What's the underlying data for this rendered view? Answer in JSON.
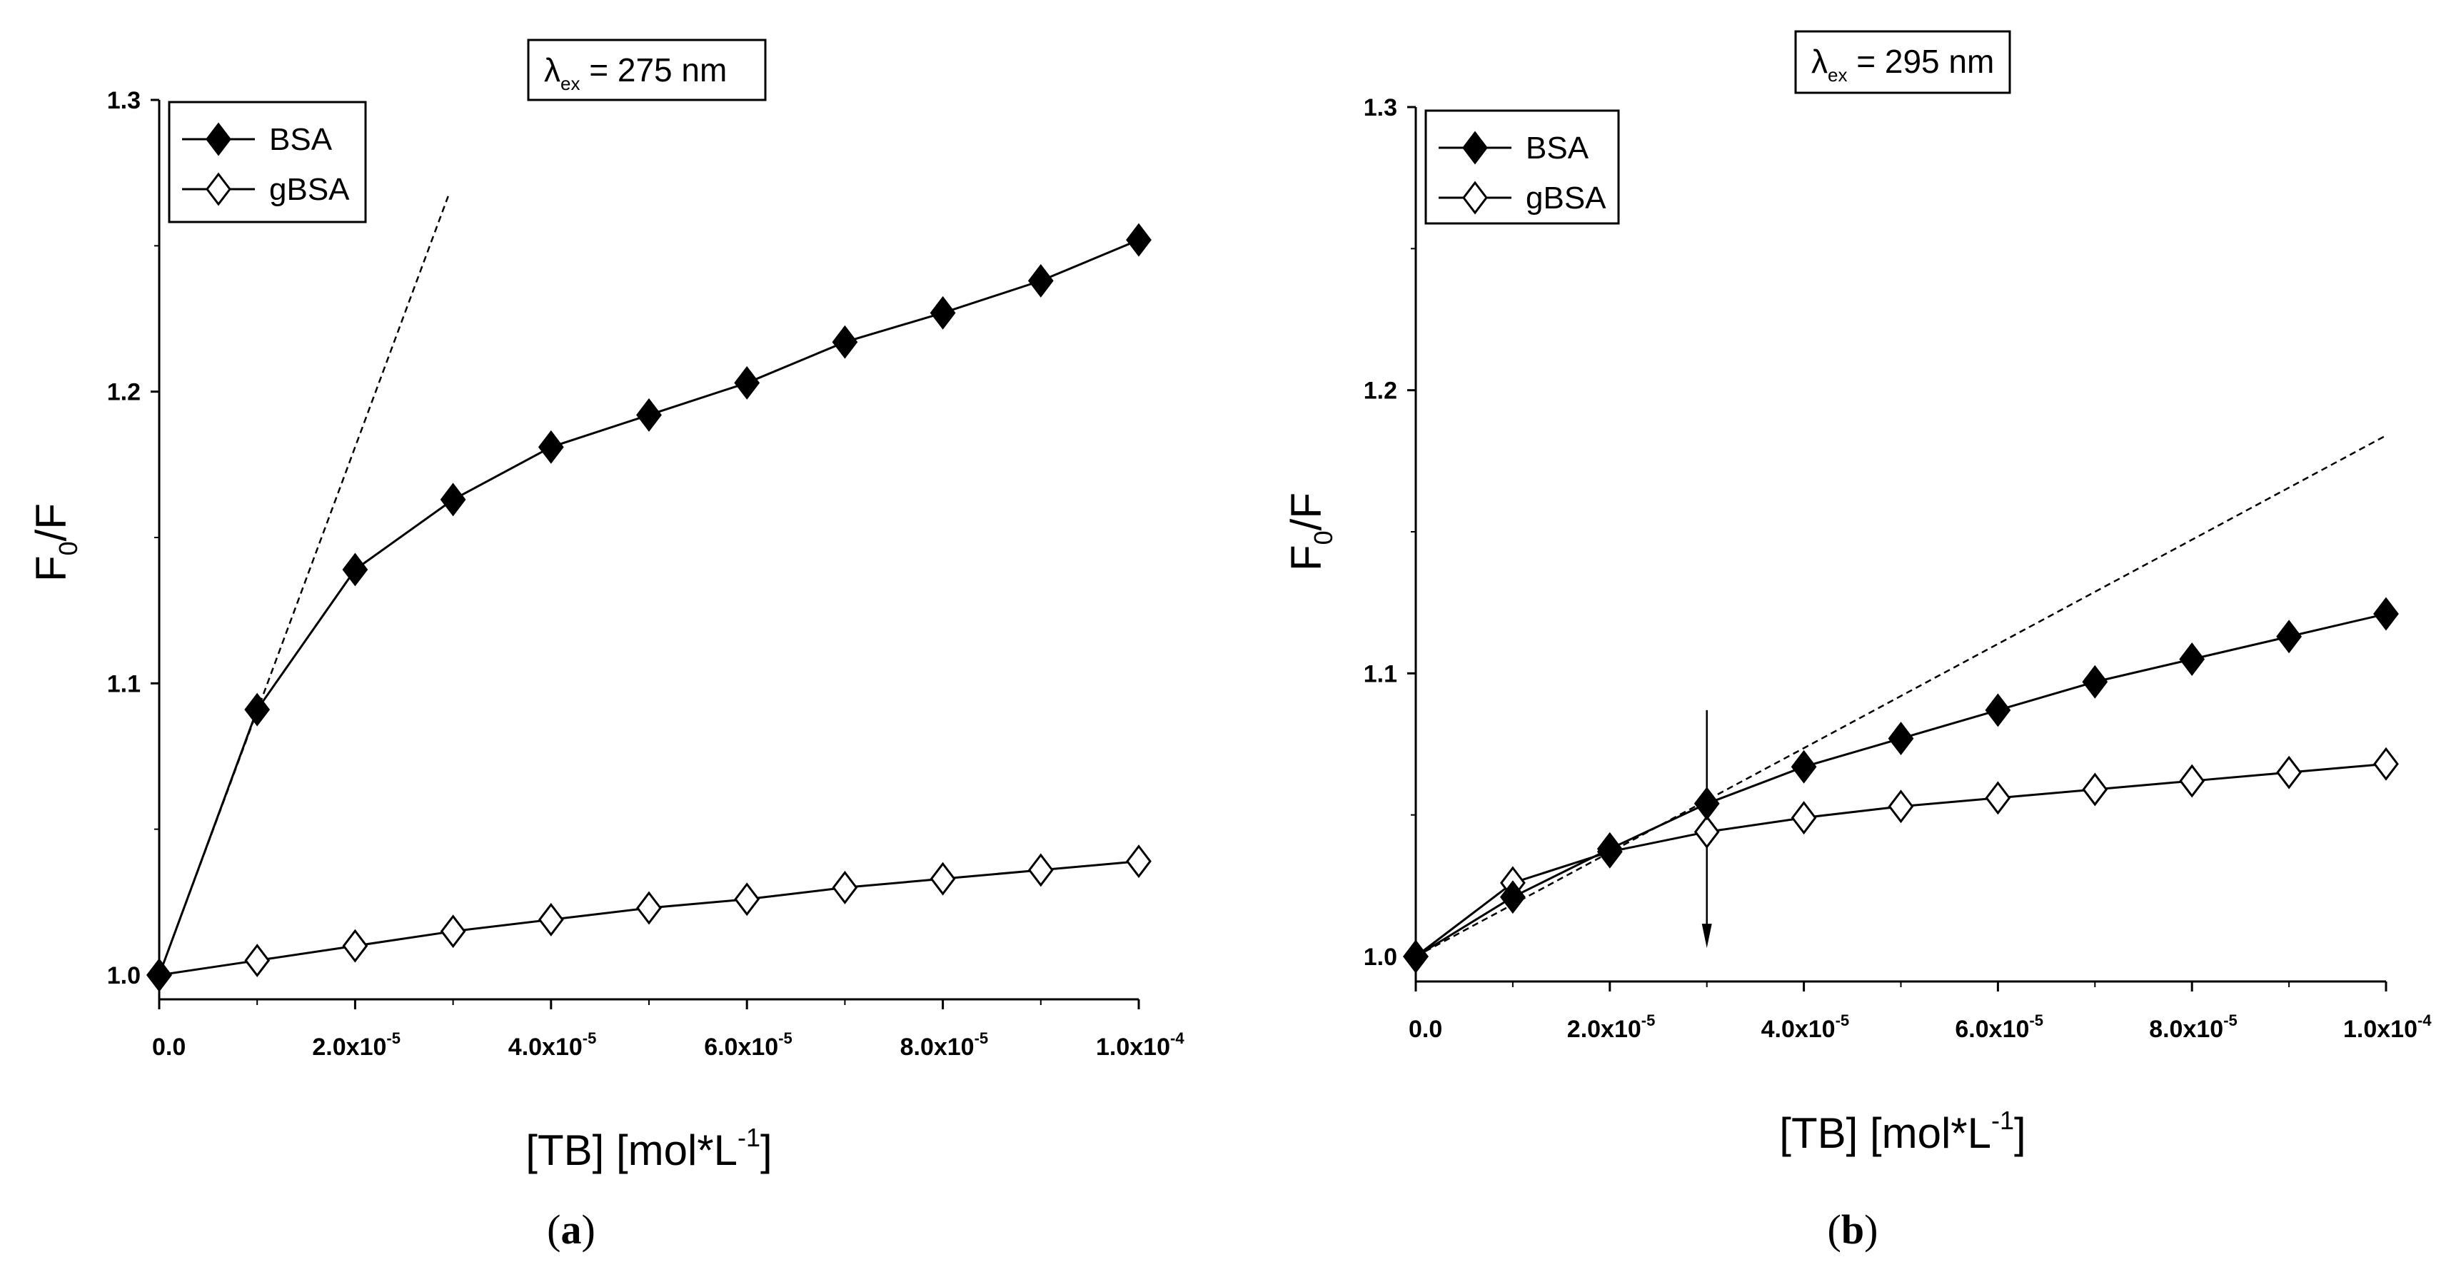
{
  "chart_data": [
    {
      "id": "a",
      "type": "line",
      "panel_label": "(a)",
      "annotation": {
        "symbol": "λ",
        "subscript": "ex",
        "text": " = 275 nm"
      },
      "xlabel": {
        "main": "[TB] [mol*L",
        "sup": "-1",
        "close": "]"
      },
      "ylabel": {
        "main": "F",
        "sub": "0",
        "rest": "/F"
      },
      "xlim": [
        0,
        0.0001
      ],
      "ylim": [
        0.99,
        1.3
      ],
      "xticks": [
        {
          "v": 0,
          "mant": "0.0",
          "exp": ""
        },
        {
          "v": 2e-05,
          "mant": "2.0x10",
          "exp": "-5"
        },
        {
          "v": 4e-05,
          "mant": "4.0x10",
          "exp": "-5"
        },
        {
          "v": 6e-05,
          "mant": "6.0x10",
          "exp": "-5"
        },
        {
          "v": 8e-05,
          "mant": "8.0x10",
          "exp": "-5"
        },
        {
          "v": 0.0001,
          "mant": "1.0x10",
          "exp": "-4"
        }
      ],
      "yticks": [
        {
          "v": 1.0,
          "label": "1.0"
        },
        {
          "v": 1.1,
          "label": "1.1"
        },
        {
          "v": 1.2,
          "label": "1.2"
        },
        {
          "v": 1.3,
          "label": "1.3"
        }
      ],
      "x": [
        0,
        1e-05,
        2e-05,
        3e-05,
        4e-05,
        5e-05,
        6e-05,
        7e-05,
        8e-05,
        9e-05,
        0.0001
      ],
      "series": [
        {
          "name": "BSA",
          "filled": true,
          "values": [
            1.0,
            1.091,
            1.139,
            1.163,
            1.181,
            1.192,
            1.203,
            1.217,
            1.227,
            1.238,
            1.252
          ]
        },
        {
          "name": "gBSA",
          "filled": false,
          "values": [
            1.0,
            1.005,
            1.01,
            1.015,
            1.019,
            1.023,
            1.026,
            1.03,
            1.033,
            1.036,
            1.039
          ]
        }
      ],
      "fit_line": {
        "x0": 0,
        "y0": 1.0,
        "x1": 2.95e-05,
        "y1": 1.267
      },
      "arrow": null
    },
    {
      "id": "b",
      "type": "line",
      "panel_label": "(b)",
      "annotation": {
        "symbol": "λ",
        "subscript": "ex",
        "text": " = 295 nm"
      },
      "xlabel": {
        "main": "[TB] [mol*L",
        "sup": "-1",
        "close": "]"
      },
      "ylabel": {
        "main": "F",
        "sub": "0",
        "rest": "/F"
      },
      "xlim": [
        0,
        0.0001
      ],
      "ylim": [
        0.99,
        1.3
      ],
      "xticks": [
        {
          "v": 0,
          "mant": "0.0",
          "exp": ""
        },
        {
          "v": 2e-05,
          "mant": "2.0x10",
          "exp": "-5"
        },
        {
          "v": 4e-05,
          "mant": "4.0x10",
          "exp": "-5"
        },
        {
          "v": 6e-05,
          "mant": "6.0x10",
          "exp": "-5"
        },
        {
          "v": 8e-05,
          "mant": "8.0x10",
          "exp": "-5"
        },
        {
          "v": 0.0001,
          "mant": "1.0x10",
          "exp": "-4"
        }
      ],
      "yticks": [
        {
          "v": 1.0,
          "label": "1.0"
        },
        {
          "v": 1.1,
          "label": "1.1"
        },
        {
          "v": 1.2,
          "label": "1.2"
        },
        {
          "v": 1.3,
          "label": "1.3"
        }
      ],
      "x": [
        0,
        1e-05,
        2e-05,
        3e-05,
        4e-05,
        5e-05,
        6e-05,
        7e-05,
        8e-05,
        9e-05,
        0.0001
      ],
      "series": [
        {
          "name": "BSA",
          "filled": true,
          "values": [
            1.0,
            1.021,
            1.038,
            1.054,
            1.067,
            1.077,
            1.087,
            1.097,
            1.105,
            1.113,
            1.121
          ]
        },
        {
          "name": "gBSA",
          "filled": false,
          "values": [
            1.0,
            1.026,
            1.037,
            1.044,
            1.049,
            1.053,
            1.056,
            1.059,
            1.062,
            1.065,
            1.068
          ]
        }
      ],
      "fit_line": {
        "x0": 0,
        "y0": 1.0,
        "x1": 0.0001,
        "y1": 1.184
      },
      "arrow": {
        "x": 3e-05,
        "y_from": 1.087,
        "y_to": 1.003
      }
    }
  ]
}
